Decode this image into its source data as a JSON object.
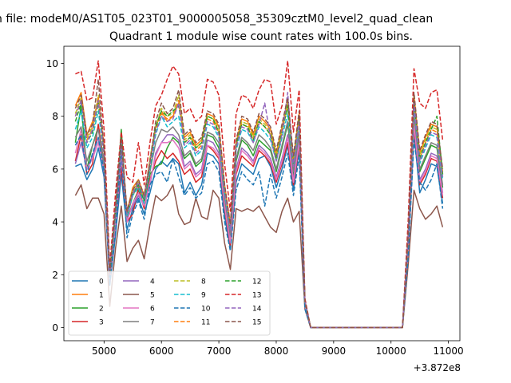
{
  "suptitle": "n file: modeM0/AS1T05_023T01_9000005058_35309cztM0_level2_quad_clean",
  "chart_data": {
    "type": "line",
    "title": "Quadrant 1 module wise count rates with 100.0s bins.",
    "xlabel": "",
    "ylabel": "",
    "x_offset_label": "+3.872e8",
    "xlim": [
      4300,
      11200
    ],
    "ylim": [
      -0.5,
      10.65
    ],
    "xticks": [
      5000,
      6000,
      7000,
      8000,
      9000,
      10000,
      11000
    ],
    "xtick_labels": [
      "5000",
      "6000",
      "7000",
      "8000",
      "9000",
      "10000",
      "11000"
    ],
    "yticks": [
      0,
      2,
      4,
      6,
      8,
      10
    ],
    "ytick_labels": [
      "0",
      "2",
      "4",
      "6",
      "8",
      "10"
    ],
    "legend": {
      "placement": "lower-left",
      "ncol": 4
    },
    "x": [
      4500,
      4600,
      4700,
      4800,
      4900,
      5000,
      5100,
      5200,
      5300,
      5400,
      5500,
      5600,
      5700,
      5800,
      5900,
      6000,
      6100,
      6200,
      6300,
      6400,
      6500,
      6600,
      6700,
      6800,
      6900,
      7000,
      7100,
      7200,
      7300,
      7400,
      7500,
      7600,
      7700,
      7800,
      7900,
      8000,
      8100,
      8200,
      8300,
      8400,
      8500,
      8600,
      8700,
      10200,
      10300,
      10400,
      10500,
      10600,
      10700,
      10800,
      10900
    ],
    "series": [
      {
        "name": "0",
        "color": "#1f77b4",
        "dash": "solid",
        "values": [
          6.1,
          6.2,
          5.6,
          6.0,
          6.8,
          5.7,
          1.6,
          3.5,
          5.8,
          3.7,
          4.5,
          4.9,
          4.3,
          5.1,
          6.0,
          6.3,
          6.1,
          6.4,
          6.2,
          5.1,
          5.5,
          5.0,
          5.4,
          6.6,
          6.5,
          6.2,
          4.2,
          3.0,
          5.5,
          6.2,
          6.0,
          5.8,
          6.4,
          6.5,
          6.1,
          5.3,
          6.0,
          6.9,
          5.2,
          6.8,
          0.8,
          0.0,
          0.0,
          0.0,
          2.8,
          7.4,
          5.1,
          5.6,
          6.2,
          6.1,
          4.7
        ]
      },
      {
        "name": "1",
        "color": "#ff7f0e",
        "dash": "solid",
        "values": [
          8.4,
          8.9,
          7.3,
          7.8,
          8.6,
          6.9,
          2.1,
          4.6,
          7.1,
          4.4,
          5.3,
          5.6,
          5.0,
          6.3,
          7.6,
          8.2,
          7.8,
          8.0,
          8.5,
          7.2,
          7.4,
          6.9,
          7.1,
          8.1,
          8.0,
          7.6,
          5.4,
          3.9,
          7.0,
          7.9,
          7.8,
          7.3,
          8.0,
          7.8,
          7.5,
          6.6,
          7.6,
          8.6,
          6.4,
          8.1,
          1.0,
          0.0,
          0.0,
          0.0,
          3.6,
          8.8,
          6.6,
          7.2,
          7.7,
          7.6,
          5.9
        ]
      },
      {
        "name": "2",
        "color": "#2ca02c",
        "dash": "solid",
        "values": [
          7.0,
          8.4,
          6.0,
          6.9,
          7.6,
          6.1,
          1.9,
          4.2,
          7.5,
          4.1,
          4.7,
          5.2,
          4.6,
          5.8,
          6.1,
          6.2,
          6.8,
          7.2,
          7.0,
          6.4,
          6.6,
          6.1,
          6.3,
          7.3,
          7.2,
          6.8,
          4.8,
          3.4,
          6.3,
          7.1,
          6.9,
          6.5,
          7.1,
          6.9,
          6.7,
          5.9,
          6.8,
          7.7,
          5.8,
          7.3,
          0.9,
          0.0,
          0.0,
          0.0,
          3.2,
          8.0,
          5.9,
          6.4,
          6.9,
          6.8,
          5.3
        ]
      },
      {
        "name": "3",
        "color": "#d62728",
        "dash": "solid",
        "values": [
          6.3,
          7.3,
          5.8,
          6.2,
          7.7,
          6.2,
          1.7,
          3.9,
          6.1,
          4.0,
          4.3,
          5.3,
          4.5,
          5.6,
          6.3,
          6.7,
          6.4,
          6.6,
          6.3,
          5.8,
          6.0,
          5.5,
          5.7,
          6.9,
          6.7,
          6.4,
          4.5,
          3.1,
          5.8,
          6.5,
          6.3,
          6.1,
          6.7,
          6.5,
          6.2,
          5.5,
          6.2,
          7.0,
          5.4,
          6.9,
          0.8,
          0.0,
          0.0,
          0.0,
          2.9,
          7.6,
          5.4,
          5.8,
          6.4,
          6.3,
          4.9
        ]
      },
      {
        "name": "4",
        "color": "#9467bd",
        "dash": "solid",
        "values": [
          6.2,
          7.0,
          6.0,
          6.5,
          7.2,
          5.9,
          1.8,
          3.8,
          6.4,
          4.1,
          4.6,
          5.0,
          4.6,
          5.4,
          6.6,
          7.0,
          7.3,
          7.3,
          7.1,
          6.1,
          6.3,
          5.8,
          6.0,
          7.1,
          7.0,
          6.6,
          4.6,
          3.3,
          6.0,
          6.8,
          6.6,
          6.3,
          6.9,
          6.7,
          6.4,
          5.7,
          6.4,
          7.3,
          5.6,
          7.1,
          0.8,
          0.0,
          0.0,
          0.0,
          3.0,
          7.8,
          5.6,
          6.0,
          6.6,
          6.5,
          5.1
        ]
      },
      {
        "name": "5",
        "color": "#8c564b",
        "dash": "solid",
        "values": [
          5.0,
          5.4,
          4.5,
          4.9,
          4.9,
          4.3,
          0.8,
          3.0,
          4.6,
          2.5,
          3.0,
          3.3,
          2.6,
          3.9,
          5.0,
          4.8,
          5.0,
          5.4,
          4.3,
          3.9,
          4.0,
          4.9,
          4.2,
          4.1,
          5.2,
          4.9,
          3.2,
          2.2,
          4.5,
          4.4,
          4.5,
          4.4,
          4.6,
          4.2,
          3.8,
          3.6,
          4.4,
          4.9,
          4.0,
          4.4,
          0.7,
          0.0,
          0.0,
          0.0,
          2.4,
          5.2,
          4.5,
          4.1,
          4.3,
          4.6,
          3.8
        ]
      },
      {
        "name": "6",
        "color": "#e377c2",
        "dash": "solid",
        "values": [
          6.6,
          7.5,
          6.0,
          6.4,
          7.0,
          6.0,
          1.7,
          4.0,
          6.6,
          4.0,
          4.7,
          5.1,
          4.6,
          5.5,
          6.5,
          7.0,
          7.0,
          7.1,
          6.8,
          6.0,
          6.2,
          5.7,
          5.9,
          6.9,
          6.8,
          6.5,
          4.6,
          3.2,
          5.9,
          6.7,
          6.5,
          6.2,
          6.8,
          6.6,
          6.3,
          5.6,
          6.3,
          7.2,
          5.5,
          7.0,
          0.8,
          0.0,
          0.0,
          0.0,
          3.0,
          7.7,
          5.5,
          5.9,
          6.5,
          6.4,
          5.0
        ]
      },
      {
        "name": "7",
        "color": "#7f7f7f",
        "dash": "solid",
        "values": [
          7.2,
          7.6,
          6.3,
          6.9,
          7.5,
          6.2,
          1.9,
          4.3,
          6.8,
          4.2,
          5.0,
          5.4,
          4.8,
          5.9,
          7.0,
          7.5,
          7.4,
          7.6,
          7.3,
          6.5,
          6.7,
          6.2,
          6.4,
          7.4,
          7.3,
          7.0,
          4.9,
          3.5,
          6.4,
          7.2,
          7.0,
          6.7,
          7.3,
          7.1,
          6.8,
          6.0,
          6.9,
          7.8,
          5.9,
          7.4,
          0.9,
          0.0,
          0.0,
          0.0,
          3.3,
          8.1,
          6.0,
          6.5,
          7.0,
          6.9,
          5.4
        ]
      },
      {
        "name": "8",
        "color": "#bcbd22",
        "dash": "dashed",
        "values": [
          8.1,
          8.7,
          7.2,
          7.6,
          8.8,
          6.7,
          2.0,
          4.5,
          7.1,
          4.3,
          5.2,
          5.5,
          4.9,
          6.4,
          7.6,
          8.3,
          8.0,
          8.1,
          8.8,
          7.1,
          7.3,
          6.8,
          7.0,
          8.0,
          7.9,
          7.5,
          5.3,
          3.8,
          6.9,
          7.8,
          7.7,
          7.2,
          7.9,
          7.7,
          7.4,
          6.5,
          7.5,
          8.5,
          6.3,
          8.0,
          1.0,
          0.0,
          0.0,
          0.0,
          3.5,
          8.7,
          6.5,
          7.1,
          7.6,
          7.5,
          5.8
        ]
      },
      {
        "name": "9",
        "color": "#17becf",
        "dash": "dashed",
        "values": [
          7.5,
          8.2,
          6.8,
          7.2,
          8.2,
          6.5,
          1.9,
          4.4,
          7.0,
          4.2,
          5.0,
          5.3,
          4.7,
          6.0,
          7.3,
          8.0,
          7.6,
          7.8,
          8.0,
          6.8,
          7.0,
          6.5,
          6.7,
          7.7,
          7.6,
          7.2,
          5.1,
          3.7,
          6.7,
          7.5,
          7.4,
          7.0,
          7.6,
          7.4,
          7.1,
          6.3,
          7.2,
          8.1,
          6.1,
          7.7,
          0.9,
          0.0,
          0.0,
          0.0,
          3.4,
          8.4,
          6.2,
          6.8,
          7.3,
          7.2,
          5.6
        ]
      },
      {
        "name": "10",
        "color": "#1f77b4",
        "dash": "dashed",
        "values": [
          6.9,
          7.3,
          5.8,
          6.6,
          7.2,
          5.9,
          1.7,
          3.6,
          6.8,
          3.4,
          4.3,
          4.8,
          4.1,
          5.4,
          5.8,
          5.9,
          5.5,
          6.4,
          5.7,
          5.0,
          5.3,
          4.9,
          5.1,
          6.2,
          6.3,
          5.9,
          4.0,
          2.9,
          5.2,
          5.9,
          5.6,
          5.4,
          5.9,
          4.6,
          5.8,
          4.9,
          5.7,
          6.6,
          5.0,
          6.5,
          0.7,
          0.0,
          0.0,
          0.0,
          2.7,
          7.1,
          5.5,
          5.2,
          5.6,
          6.2,
          4.5
        ]
      },
      {
        "name": "11",
        "color": "#ff7f0e",
        "dash": "dashed",
        "values": [
          8.0,
          8.6,
          7.1,
          7.5,
          8.7,
          6.6,
          2.0,
          4.5,
          7.0,
          4.3,
          5.1,
          5.5,
          4.9,
          6.2,
          7.5,
          8.1,
          7.9,
          8.0,
          8.6,
          7.0,
          7.2,
          6.7,
          6.9,
          7.9,
          7.8,
          7.4,
          5.3,
          3.8,
          6.9,
          7.7,
          7.6,
          7.1,
          7.8,
          7.6,
          7.3,
          6.4,
          7.4,
          8.4,
          6.2,
          7.9,
          1.0,
          0.0,
          0.0,
          0.0,
          3.5,
          8.6,
          6.4,
          7.0,
          7.5,
          7.4,
          5.8
        ]
      },
      {
        "name": "12",
        "color": "#2ca02c",
        "dash": "dashed",
        "values": [
          7.8,
          8.5,
          7.0,
          7.4,
          8.5,
          6.6,
          2.0,
          4.4,
          7.2,
          4.3,
          5.1,
          5.4,
          4.8,
          6.1,
          7.6,
          8.2,
          8.0,
          8.2,
          8.4,
          7.0,
          7.2,
          6.8,
          7.0,
          8.0,
          7.9,
          7.4,
          5.3,
          3.8,
          6.9,
          7.7,
          7.6,
          7.1,
          7.8,
          7.6,
          7.3,
          6.4,
          7.4,
          8.4,
          6.2,
          7.9,
          1.0,
          0.0,
          0.0,
          0.0,
          3.5,
          8.6,
          6.4,
          7.0,
          7.5,
          8.0,
          5.8
        ]
      },
      {
        "name": "13",
        "color": "#d62728",
        "dash": "dashed",
        "values": [
          9.6,
          9.7,
          8.6,
          8.7,
          10.1,
          7.5,
          2.3,
          5.1,
          7.4,
          5.7,
          5.5,
          7.0,
          5.4,
          7.0,
          8.4,
          8.8,
          9.4,
          9.9,
          9.6,
          8.1,
          8.3,
          7.8,
          8.0,
          9.4,
          9.3,
          8.8,
          6.2,
          4.4,
          8.1,
          8.8,
          8.7,
          8.3,
          9.0,
          9.4,
          9.3,
          7.7,
          8.4,
          10.1,
          7.4,
          9.0,
          1.1,
          0.0,
          0.0,
          0.0,
          4.1,
          9.8,
          8.5,
          8.3,
          8.9,
          9.0,
          7.1
        ]
      },
      {
        "name": "14",
        "color": "#9467bd",
        "dash": "dashed",
        "values": [
          8.0,
          8.6,
          7.0,
          7.5,
          8.6,
          6.6,
          2.0,
          4.5,
          7.0,
          4.3,
          5.1,
          5.5,
          4.9,
          6.2,
          7.4,
          8.0,
          7.8,
          7.9,
          8.5,
          6.9,
          7.1,
          6.6,
          6.8,
          7.8,
          7.7,
          7.3,
          5.2,
          3.7,
          6.8,
          7.6,
          7.5,
          7.0,
          7.7,
          8.5,
          7.2,
          6.3,
          7.3,
          8.9,
          6.1,
          7.8,
          1.0,
          0.0,
          0.0,
          0.0,
          3.5,
          8.5,
          6.3,
          6.9,
          7.4,
          7.3,
          5.7
        ]
      },
      {
        "name": "15",
        "color": "#8c564b",
        "dash": "dashed",
        "values": [
          8.3,
          8.8,
          7.3,
          7.7,
          9.4,
          6.8,
          2.1,
          4.6,
          7.2,
          4.4,
          5.2,
          5.6,
          5.0,
          6.3,
          7.8,
          8.5,
          8.1,
          8.3,
          9.0,
          7.3,
          7.5,
          7.0,
          7.2,
          8.2,
          8.1,
          7.7,
          5.4,
          3.9,
          7.1,
          8.0,
          7.9,
          7.4,
          8.1,
          7.9,
          7.6,
          6.7,
          7.7,
          8.7,
          6.5,
          8.2,
          1.0,
          0.0,
          0.0,
          0.0,
          3.6,
          8.9,
          6.7,
          7.3,
          7.8,
          7.7,
          6.0
        ]
      }
    ]
  }
}
